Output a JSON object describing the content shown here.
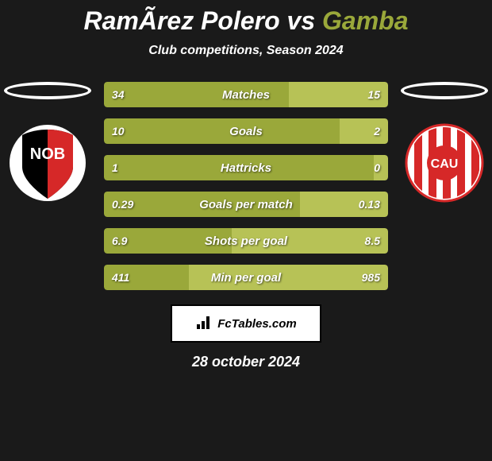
{
  "title": {
    "player1": "RamÃrez Polero",
    "vs": "vs",
    "player2": "Gamba",
    "highlight_color": "#9aa83a"
  },
  "subtitle": "Club competitions, Season 2024",
  "bars": {
    "left_color": "#9aa83a",
    "right_color": "#b7c256",
    "text_color": "#ffffff",
    "rows": [
      {
        "label": "Matches",
        "left": "34",
        "right": "15",
        "left_pct": 65,
        "right_pct": 35
      },
      {
        "label": "Goals",
        "left": "10",
        "right": "2",
        "left_pct": 83,
        "right_pct": 17
      },
      {
        "label": "Hattricks",
        "left": "1",
        "right": "0",
        "left_pct": 95,
        "right_pct": 5
      },
      {
        "label": "Goals per match",
        "left": "0.29",
        "right": "0.13",
        "left_pct": 69,
        "right_pct": 31
      },
      {
        "label": "Shots per goal",
        "left": "6.9",
        "right": "8.5",
        "left_pct": 45,
        "right_pct": 55
      },
      {
        "label": "Min per goal",
        "left": "411",
        "right": "985",
        "left_pct": 30,
        "right_pct": 70
      }
    ]
  },
  "clubs": {
    "left": {
      "name": "newells-old-boys",
      "shield_bg_left": "#000000",
      "shield_bg_right": "#d62828",
      "text": "NOB",
      "text_color": "#ffffff"
    },
    "right": {
      "name": "union-santa-fe",
      "circle_bg": "#ffffff",
      "stripe_color": "#d62828",
      "text": "CAU",
      "text_color": "#ffffff"
    }
  },
  "footer": {
    "brand": "FcTables.com",
    "date": "28 october 2024"
  },
  "background_color": "#1a1a1a"
}
